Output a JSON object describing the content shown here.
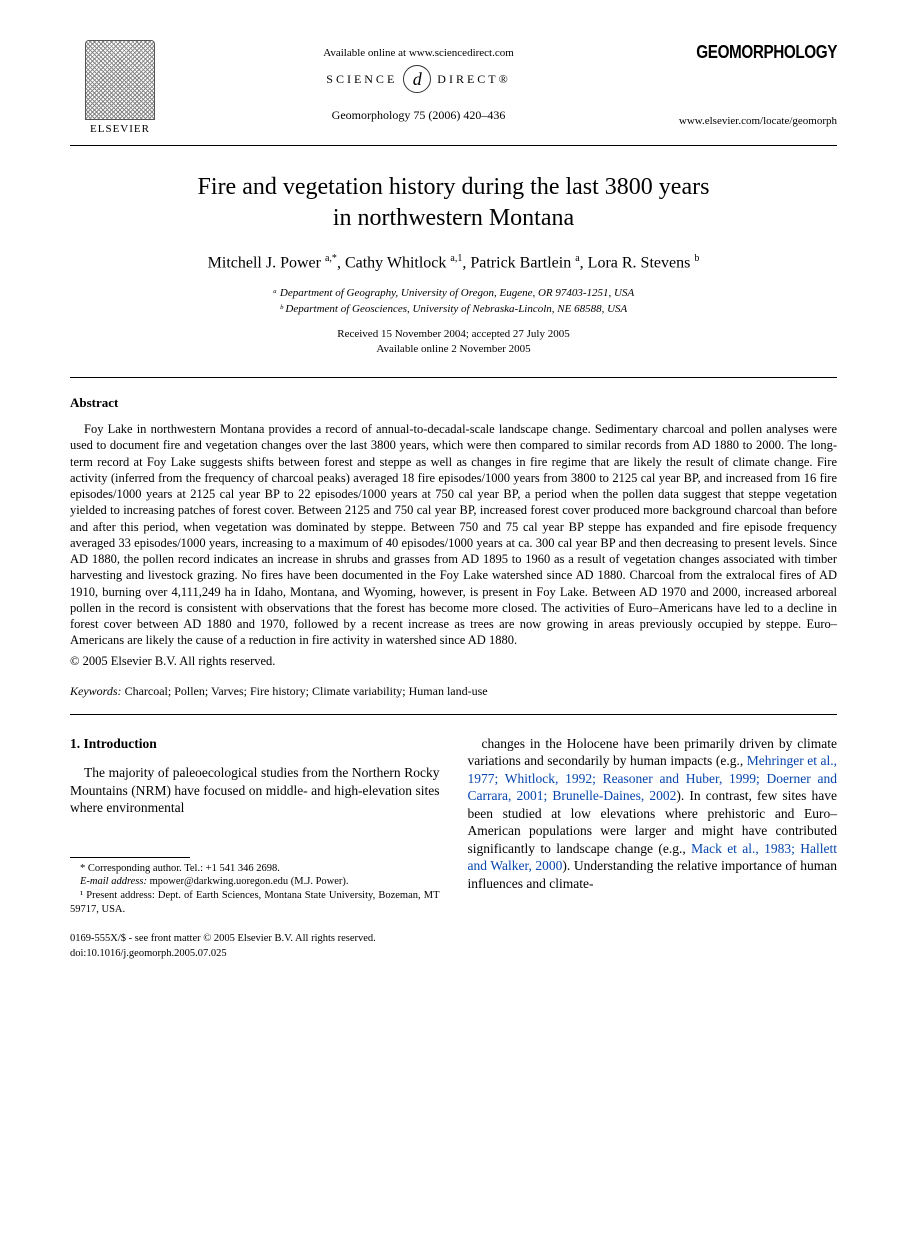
{
  "header": {
    "available_online": "Available online at www.sciencedirect.com",
    "sd_left": "SCIENCE",
    "sd_symbol": "d",
    "sd_right": "DIRECT®",
    "elsevier_label": "ELSEVIER",
    "journal_citation": "Geomorphology 75 (2006) 420–436",
    "journal_name": "GEOMORPHOLOGY",
    "journal_url": "www.elsevier.com/locate/geomorph"
  },
  "title_line1": "Fire and vegetation history during the last 3800 years",
  "title_line2": "in northwestern Montana",
  "authors_html": "Mitchell J. Power <sup>a,*</sup>, Cathy Whitlock <sup>a,1</sup>, Patrick Bartlein <sup>a</sup>, Lora R. Stevens <sup>b</sup>",
  "affiliations": {
    "a": "ᵃ Department of Geography, University of Oregon, Eugene, OR 97403-1251, USA",
    "b": "ᵇ Department of Geosciences, University of Nebraska-Lincoln, NE 68588, USA"
  },
  "dates": {
    "received": "Received 15 November 2004; accepted 27 July 2005",
    "online": "Available online 2 November 2005"
  },
  "abstract": {
    "heading": "Abstract",
    "body": "Foy Lake in northwestern Montana provides a record of annual-to-decadal-scale landscape change. Sedimentary charcoal and pollen analyses were used to document fire and vegetation changes over the last 3800 years, which were then compared to similar records from AD 1880 to 2000. The long-term record at Foy Lake suggests shifts between forest and steppe as well as changes in fire regime that are likely the result of climate change. Fire activity (inferred from the frequency of charcoal peaks) averaged 18 fire episodes/1000 years from 3800 to 2125 cal year BP, and increased from 16 fire episodes/1000 years at 2125 cal year BP to 22 episodes/1000 years at 750 cal year BP, a period when the pollen data suggest that steppe vegetation yielded to increasing patches of forest cover. Between 2125 and 750 cal year BP, increased forest cover produced more background charcoal than before and after this period, when vegetation was dominated by steppe. Between 750 and 75 cal year BP steppe has expanded and fire episode frequency averaged 33 episodes/1000 years, increasing to a maximum of 40 episodes/1000 years at ca. 300 cal year BP and then decreasing to present levels. Since AD 1880, the pollen record indicates an increase in shrubs and grasses from AD 1895 to 1960 as a result of vegetation changes associated with timber harvesting and livestock grazing. No fires have been documented in the Foy Lake watershed since AD 1880. Charcoal from the extralocal fires of AD 1910, burning over 4,111,249 ha in Idaho, Montana, and Wyoming, however, is present in Foy Lake. Between AD 1970 and 2000, increased arboreal pollen in the record is consistent with observations that the forest has become more closed. The activities of Euro–Americans have led to a decline in forest cover between AD 1880 and 1970, followed by a recent increase as trees are now growing in areas previously occupied by steppe. Euro–Americans are likely the cause of a reduction in fire activity in watershed since AD 1880.",
    "copyright": "© 2005 Elsevier B.V. All rights reserved."
  },
  "keywords": {
    "label": "Keywords:",
    "text": " Charcoal; Pollen; Varves; Fire history; Climate variability; Human land-use"
  },
  "section1": {
    "heading": "1. Introduction",
    "left_para": "The majority of paleoecological studies from the Northern Rocky Mountains (NRM) have focused on middle- and high-elevation sites where environmental",
    "right_pre": "changes in the Holocene have been primarily driven by climate variations and secondarily by human impacts (e.g., ",
    "right_cite1": "Mehringer et al., 1977; Whitlock, 1992; Reasoner and Huber, 1999; Doerner and Carrara, 2001; Brunelle-Daines, 2002",
    "right_mid": "). In contrast, few sites have been studied at low elevations where prehistoric and Euro–American populations were larger and might have contributed significantly to landscape change (e.g., ",
    "right_cite2": "Mack et al., 1983; Hallett and Walker, 2000",
    "right_post": "). Understanding the relative importance of human influences and climate-"
  },
  "footnotes": {
    "corresponding": "* Corresponding author. Tel.: +1 541 346 2698.",
    "email_label": "E-mail address:",
    "email_value": " mpower@darkwing.uoregon.edu (M.J. Power).",
    "present": "¹ Present address: Dept. of Earth Sciences, Montana State University, Bozeman, MT 59717, USA."
  },
  "footer": {
    "line1": "0169-555X/$ - see front matter © 2005 Elsevier B.V. All rights reserved.",
    "line2": "doi:10.1016/j.geomorph.2005.07.025"
  },
  "colors": {
    "text": "#000000",
    "background": "#ffffff",
    "link": "#0645ad"
  }
}
